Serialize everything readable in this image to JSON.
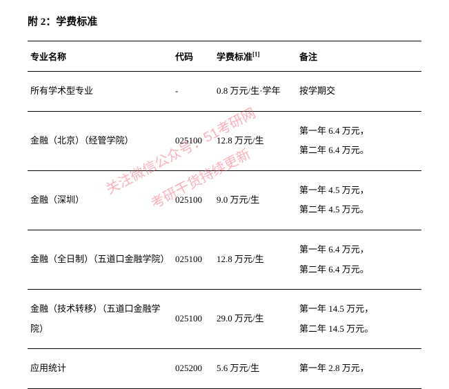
{
  "title": "附 2：学费标准",
  "headers": {
    "name": "专业名称",
    "code": "代码",
    "fee": "学费标准",
    "fee_sup": "[1]",
    "note": "备注"
  },
  "rows": [
    {
      "name": "所有学术型专业",
      "code": "-",
      "fee": "0.8 万元/生·学年",
      "note": "按学期交"
    },
    {
      "name": "金融（北京）（经管学院）",
      "code": "025100",
      "fee": "12.8 万元/生",
      "note": "第一年 6.4 万元，\n第二年 6.4 万元。"
    },
    {
      "name": "金融（深圳）",
      "code": "025100",
      "fee": "9.0 万元/生",
      "note": "第一年 4.5 万元，\n第二年 4.5 万元。"
    },
    {
      "name": "金融（全日制）（五道口金融学院）",
      "code": "025100",
      "fee": "12.8 万元/生",
      "note": "第一年 6.4 万元，\n第二年 6.4 万元。"
    },
    {
      "name": "金融（技术转移）（五道口金融学院）",
      "code": "025100",
      "fee": "29.0 万元/生",
      "note": "第一年 14.5 万元，\n第二年 14.5 万元。"
    },
    {
      "name": "应用统计",
      "code": "025200",
      "fee": "5.6 万元/生",
      "note": "第一年 2.8 万元，"
    }
  ],
  "watermark": {
    "line1": "关注微信公众号：51考研网",
    "line2": "考研干货持续更新"
  },
  "style": {
    "background_color": "#ffffff",
    "text_color": "#000000",
    "border_color": "#000000",
    "watermark_color": "rgba(248,80,100,0.45)",
    "font_family": "SimSun",
    "title_fontsize": 15,
    "body_fontsize": 13,
    "watermark_fontsize": 20,
    "watermark_rotation_deg": -28
  }
}
